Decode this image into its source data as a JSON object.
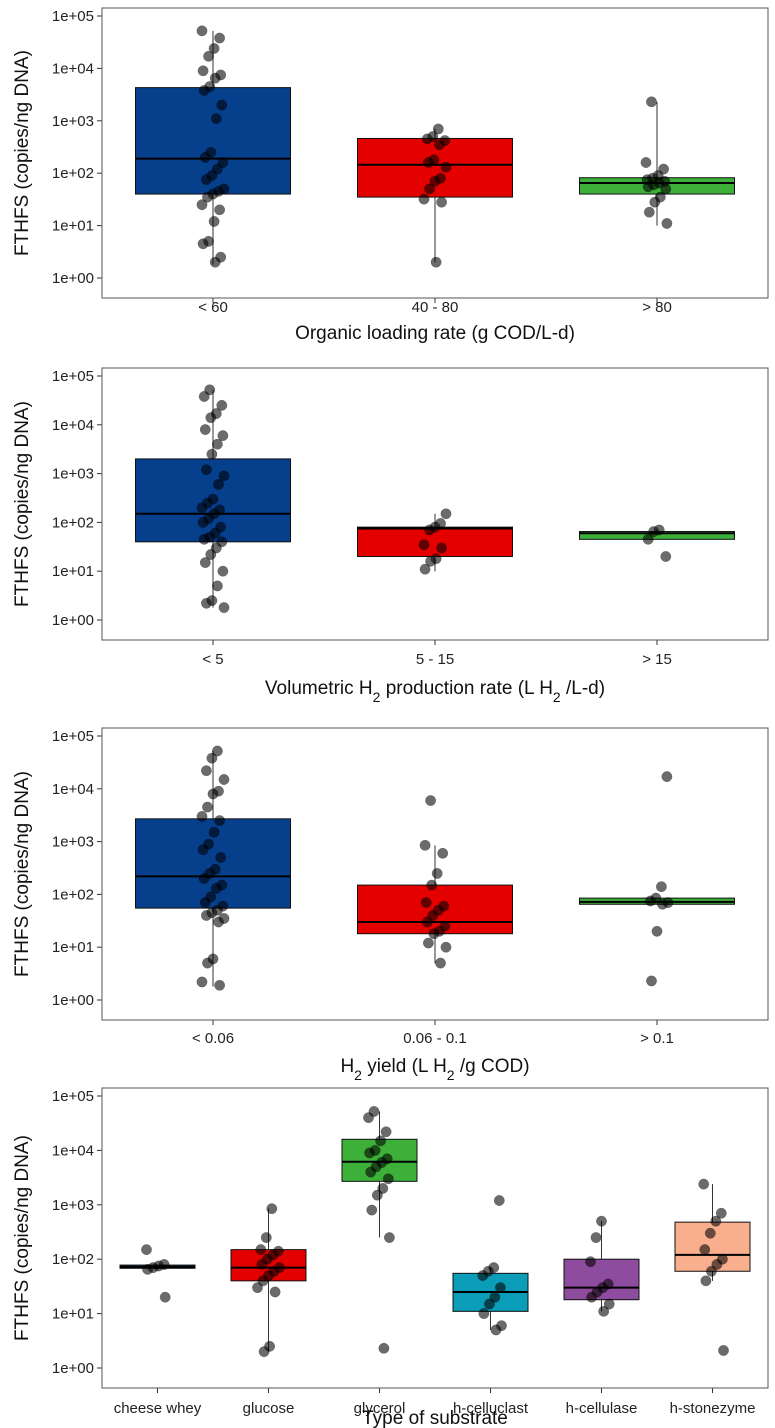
{
  "chart_data": [
    {
      "type": "box",
      "ylabel": "FTHFS (copies/ng DNA)",
      "xlabel": "Organic loading rate (g COD/L-d)",
      "yscale": "log10",
      "ylim": [
        1,
        100000
      ],
      "yticks": [
        "1e+00",
        "1e+01",
        "1e+02",
        "1e+03",
        "1e+04",
        "1e+05"
      ],
      "grid": false,
      "categories": [
        "< 60",
        "40 - 80",
        "> 80"
      ],
      "boxes": [
        {
          "category": "< 60",
          "color": "#063F8C",
          "q1": 40,
          "median": 190,
          "q3": 4300,
          "whisker_low": 1.8,
          "whisker_high": 52000,
          "points": [
            52000,
            38000,
            24000,
            17000,
            9000,
            7500,
            6500,
            4500,
            3800,
            2000,
            1100,
            250,
            200,
            160,
            120,
            90,
            75,
            50,
            45,
            40,
            35,
            25,
            20,
            12,
            5,
            4.5,
            2.5,
            2
          ]
        },
        {
          "category": "40 - 80",
          "color": "#E50000",
          "q1": 35,
          "median": 145,
          "q3": 460,
          "whisker_low": 2,
          "whisker_high": 700,
          "points": [
            700,
            500,
            450,
            420,
            350,
            180,
            160,
            130,
            80,
            70,
            50,
            32,
            28,
            2
          ]
        },
        {
          "category": "> 80",
          "color": "#3DB03A",
          "q1": 40,
          "median": 65,
          "q3": 82,
          "whisker_low": 10,
          "whisker_high": 2300,
          "points": [
            2300,
            160,
            120,
            90,
            80,
            75,
            70,
            65,
            60,
            55,
            50,
            35,
            28,
            18,
            11
          ]
        }
      ]
    },
    {
      "type": "box",
      "ylabel": "FTHFS (copies/ng DNA)",
      "xlabel": "Volumetric H2 production rate (L H2 /L-d)",
      "xlabel_parts": [
        "Volumetric H",
        "2",
        " production rate (L H",
        "2",
        " /L-d)"
      ],
      "yscale": "log10",
      "ylim": [
        1,
        100000
      ],
      "yticks": [
        "1e+00",
        "1e+01",
        "1e+02",
        "1e+03",
        "1e+04",
        "1e+05"
      ],
      "grid": false,
      "categories": [
        "< 5",
        "5 - 15",
        "> 15"
      ],
      "boxes": [
        {
          "category": "< 5",
          "color": "#063F8C",
          "q1": 40,
          "median": 150,
          "q3": 2000,
          "whisker_low": 1.8,
          "whisker_high": 52000,
          "points": [
            52000,
            38000,
            25000,
            17000,
            14000,
            8000,
            6000,
            4000,
            2500,
            1200,
            900,
            600,
            300,
            250,
            200,
            180,
            150,
            120,
            100,
            80,
            60,
            50,
            45,
            40,
            30,
            22,
            15,
            10,
            5,
            2.5,
            2.2,
            1.8
          ]
        },
        {
          "category": "5 - 15",
          "color": "#E50000",
          "q1": 20,
          "median": 75,
          "q3": 80,
          "whisker_low": 10,
          "whisker_high": 150,
          "points": [
            150,
            95,
            80,
            70,
            35,
            30,
            18,
            16,
            11
          ]
        },
        {
          "category": "> 15",
          "color": "#3DB03A",
          "q1": 45,
          "median": 60,
          "q3": 65,
          "whisker_low": 45,
          "whisker_high": 70,
          "points": [
            70,
            65,
            45,
            20
          ]
        }
      ]
    },
    {
      "type": "box",
      "ylabel": "FTHFS (copies/ng DNA)",
      "xlabel": "H2 yield (L H2 /g COD)",
      "xlabel_parts": [
        "H",
        "2",
        " yield (L H",
        "2",
        " /g COD)"
      ],
      "yscale": "log10",
      "ylim": [
        1,
        100000
      ],
      "yticks": [
        "1e+00",
        "1e+01",
        "1e+02",
        "1e+03",
        "1e+04",
        "1e+05"
      ],
      "grid": false,
      "categories": [
        "< 0.06",
        "0.06 - 0.1",
        "> 0.1"
      ],
      "boxes": [
        {
          "category": "< 0.06",
          "color": "#063F8C",
          "q1": 55,
          "median": 220,
          "q3": 2700,
          "whisker_low": 1.8,
          "whisker_high": 52000,
          "points": [
            52000,
            38000,
            22000,
            15000,
            9000,
            8000,
            4500,
            3000,
            2500,
            1500,
            900,
            700,
            500,
            300,
            250,
            200,
            150,
            130,
            90,
            70,
            60,
            50,
            45,
            40,
            35,
            30,
            6,
            5,
            2.2,
            1.9
          ]
        },
        {
          "category": "0.06 - 0.1",
          "color": "#E50000",
          "q1": 18,
          "median": 30,
          "q3": 150,
          "whisker_low": 5,
          "whisker_high": 850,
          "points": [
            6000,
            850,
            600,
            250,
            150,
            70,
            60,
            50,
            40,
            30,
            25,
            20,
            18,
            12,
            10,
            5
          ]
        },
        {
          "category": "> 0.1",
          "color": "#3DB03A",
          "q1": 65,
          "median": 72,
          "q3": 85,
          "whisker_low": 65,
          "whisker_high": 85,
          "points": [
            17000,
            140,
            85,
            75,
            70,
            65,
            20,
            2.3
          ]
        }
      ]
    },
    {
      "type": "box",
      "ylabel": "FTHFS (copies/ng DNA)",
      "xlabel": "Type of substrate",
      "yscale": "log10",
      "ylim": [
        1,
        100000
      ],
      "yticks": [
        "1e+00",
        "1e+01",
        "1e+02",
        "1e+03",
        "1e+04",
        "1e+05"
      ],
      "grid": false,
      "categories": [
        "cheese whey",
        "glucose",
        "glycerol",
        "h-celluclast",
        "h-cellulase",
        "h-stonezyme"
      ],
      "boxes": [
        {
          "category": "cheese whey",
          "color": "#0B2D50",
          "q1": 68,
          "median": 72,
          "q3": 78,
          "whisker_low": 68,
          "whisker_high": 78,
          "points": [
            150,
            80,
            75,
            70,
            65,
            20
          ]
        },
        {
          "category": "glucose",
          "color": "#E50000",
          "q1": 40,
          "median": 70,
          "q3": 150,
          "whisker_low": 2,
          "whisker_high": 850,
          "points": [
            850,
            250,
            150,
            140,
            120,
            100,
            80,
            70,
            60,
            50,
            40,
            30,
            25,
            2.5,
            2
          ]
        },
        {
          "category": "glycerol",
          "color": "#3DB03A",
          "q1": 2700,
          "median": 6200,
          "q3": 16000,
          "whisker_low": 250,
          "whisker_high": 52000,
          "points": [
            52000,
            40000,
            22000,
            15000,
            10000,
            9000,
            7000,
            6000,
            5000,
            4000,
            3000,
            2000,
            1500,
            800,
            250,
            2.3
          ]
        },
        {
          "category": "h-celluclast",
          "color": "#0B9CB8",
          "q1": 11,
          "median": 25,
          "q3": 55,
          "whisker_low": 5,
          "whisker_high": 70,
          "points": [
            1200,
            70,
            60,
            50,
            30,
            20,
            15,
            10,
            6,
            5
          ]
        },
        {
          "category": "h-cellulase",
          "color": "#8E4C9E",
          "q1": 18,
          "median": 30,
          "q3": 100,
          "whisker_low": 11,
          "whisker_high": 500,
          "points": [
            500,
            250,
            90,
            35,
            30,
            25,
            20,
            15,
            11
          ]
        },
        {
          "category": "h-stonezyme",
          "color": "#F9AF8D",
          "q1": 60,
          "median": 120,
          "q3": 480,
          "whisker_low": 40,
          "whisker_high": 2400,
          "points": [
            2400,
            700,
            500,
            300,
            150,
            100,
            80,
            60,
            40,
            2.1
          ]
        }
      ]
    }
  ]
}
